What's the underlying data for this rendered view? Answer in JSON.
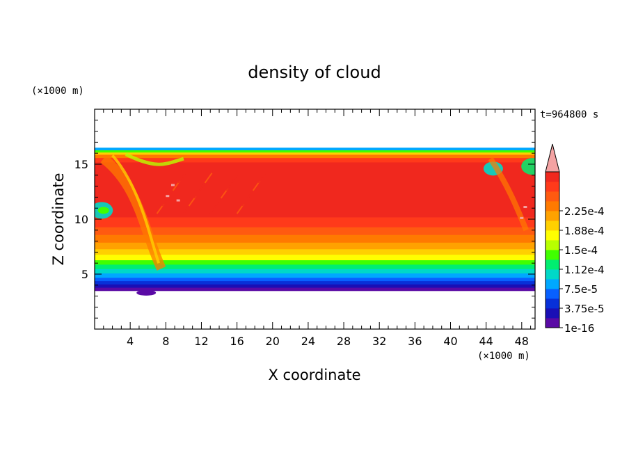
{
  "chart_data": {
    "type": "heatmap",
    "title": "density of cloud",
    "xlabel": "X coordinate",
    "ylabel": "Z coordinate",
    "x_unit": "(×1000 m)",
    "y_unit": "(×1000 m)",
    "time_label": "t=964800 s",
    "xlim": [
      0,
      49.5
    ],
    "ylim": [
      0,
      20
    ],
    "x_ticks": [
      "4",
      "8",
      "12",
      "16",
      "20",
      "24",
      "28",
      "32",
      "36",
      "40",
      "44",
      "48"
    ],
    "y_ticks": [
      "5",
      "10",
      "15"
    ],
    "colorbar": {
      "labels": [
        "2.25e-4",
        "1.88e-4",
        "1.5e-4",
        "1.12e-4",
        "7.5e-5",
        "3.75e-5",
        "1e-16"
      ],
      "colors": [
        "#5a0aa5",
        "#1a0fb5",
        "#0830d8",
        "#0860ff",
        "#00a8ff",
        "#00d8c8",
        "#00ee70",
        "#40ff00",
        "#b8ff00",
        "#ffff00",
        "#ffd000",
        "#ffa200",
        "#ff7a00",
        "#ff5a10",
        "#ff3a1a",
        "#f0281e"
      ],
      "extend_color": "#f4a3a3"
    },
    "cloud_layer": {
      "base_z": 3.5,
      "top_z": 16.5,
      "core_value_range": [
        "2.25e-4",
        "2.4e-4"
      ],
      "profile": [
        {
          "z": 3.5,
          "level": 0
        },
        {
          "z": 3.8,
          "level": 1
        },
        {
          "z": 4.1,
          "level": 2
        },
        {
          "z": 4.4,
          "level": 3
        },
        {
          "z": 4.7,
          "level": 4
        },
        {
          "z": 5.1,
          "level": 5
        },
        {
          "z": 5.5,
          "level": 6
        },
        {
          "z": 5.9,
          "level": 7
        },
        {
          "z": 6.3,
          "level": 9
        },
        {
          "z": 6.8,
          "level": 10
        },
        {
          "z": 7.3,
          "level": 11
        },
        {
          "z": 7.9,
          "level": 12
        },
        {
          "z": 8.6,
          "level": 13
        },
        {
          "z": 9.3,
          "level": 14
        },
        {
          "z": 10.2,
          "level": 15
        },
        {
          "z": 13.8,
          "level": 15
        },
        {
          "z": 15.2,
          "level": 14
        },
        {
          "z": 15.6,
          "level": 12
        },
        {
          "z": 15.9,
          "level": 10
        },
        {
          "z": 16.1,
          "level": 7
        },
        {
          "z": 16.3,
          "level": 4
        },
        {
          "z": 16.5,
          "level": 1
        }
      ]
    }
  }
}
